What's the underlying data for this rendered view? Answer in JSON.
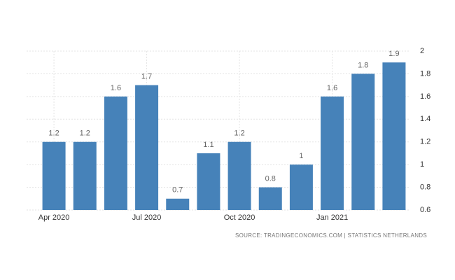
{
  "chart_data": {
    "type": "bar",
    "categories": [
      "Apr 2020",
      null,
      null,
      "Jul 2020",
      null,
      null,
      "Oct 2020",
      null,
      null,
      "Jan 2021",
      null,
      null
    ],
    "values": [
      1.2,
      1.2,
      1.6,
      1.7,
      0.7,
      1.1,
      1.2,
      0.8,
      1,
      1.6,
      1.8,
      1.9
    ],
    "color": "#4682b9",
    "ylim": [
      0.6,
      2
    ],
    "yticks": [
      0.6,
      0.8,
      1,
      1.2,
      1.4,
      1.6,
      1.8,
      2
    ],
    "grid": true,
    "source": "SOURCE: TRADINGECONOMICS.COM | STATISTICS NETHERLANDS"
  }
}
